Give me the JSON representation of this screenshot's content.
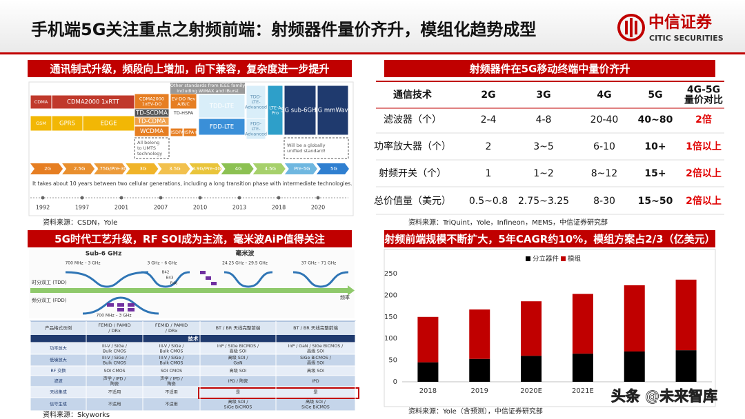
{
  "header": {
    "title": "手机端5G关注重点之射频前端：射频器件量价齐升，模组化趋势成型",
    "logo_cn": "中信证券",
    "logo_en": "CITIC SECURITIES"
  },
  "timeline_panel": {
    "title": "通讯制式升级，频段向上增加，向下兼容，复杂度进一步提升",
    "boxes": [
      [
        "CDMA"
      ],
      [
        "CDMA2000 1xRTT"
      ],
      [
        "CDMA2000",
        "1xEV-DO"
      ],
      [
        "EV-DO Rev",
        "A/B/C"
      ],
      [
        "TDD-LTE"
      ],
      [
        "TDD-",
        "LTE-",
        "Advanced"
      ],
      [
        "LTE-A",
        "Pro"
      ],
      [
        "5G sub-6GHz"
      ],
      [
        "5G mmWave"
      ],
      [
        "GSM"
      ],
      [
        "GPRS"
      ],
      [
        "EDGE"
      ],
      [
        "TD-SCDMA"
      ],
      [
        "TD-HSPA"
      ],
      [
        "TD-CDMA"
      ],
      [
        "WCDMA"
      ],
      [
        "HSDPA"
      ],
      [
        "HSPA+"
      ],
      [
        "FDD-LTE"
      ],
      [
        "FDD-",
        "LTE-",
        "Advanced"
      ]
    ],
    "notes": [
      [
        "Other standards from IEEE family",
        "including WiMAX and iBurst"
      ],
      [
        "All belong",
        "to UMTS",
        "technology"
      ],
      [
        "Will be a globally",
        "unified standard!"
      ]
    ],
    "generations": [
      "2G",
      "2.5G",
      "2.75G/Pre-3G",
      "3G",
      "3.5G",
      "3.9G/Pre-4G",
      "4G",
      "4.5G",
      "Pre-5G",
      "5G"
    ],
    "note": "It takes about 10 years between two cellular generations, including a long transition phase with intermediate technologies.",
    "years": [
      "1992",
      "1997",
      "2001",
      "2007",
      "2010",
      "2013",
      "2018",
      "2020"
    ],
    "source": "资料来源：CSDN，Yole"
  },
  "rf_panel": {
    "title": "5G时代工艺升级，RF SOI成为主流，毫米波AiP值得关注",
    "labels": [
      "Sub-6 GHz",
      "毫米波",
      "700 MHz – 3 GHz",
      "3 GHz – 6 GHz",
      "24.25 GHz – 29.5 GHz",
      "37 GHz – 71 GHz",
      "B42",
      "B43",
      "B46",
      "时分双工 (TDD)",
      "频分双工 (FDD)",
      "频率",
      "700 MHz – 3 GHz"
    ],
    "table": {
      "header": [
        [
          "产品格式示例"
        ],
        [
          "FEMID / PAMID",
          "/ DRx"
        ],
        [
          "FEMID / PAMID",
          "/ DRx"
        ],
        [
          "BT / BR 天线完整前端"
        ],
        [
          "BT / BR 天线完整前端"
        ]
      ],
      "section": "技术",
      "rows": [
        [
          [
            "功率放大"
          ],
          [
            "III-V / SiGe /",
            "Bulk CMOS"
          ],
          [
            "III-V / SiGe /",
            "Bulk CMOS"
          ],
          [
            "InP / SiGe BiCMOS /",
            "高级 SOI"
          ],
          [
            "InP / GaN / SiGe BiCMOS /",
            "高级 SOI"
          ]
        ],
        [
          [
            "低噪放大"
          ],
          [
            "III-V / SiGe /",
            "Bulk CMOS"
          ],
          [
            "III-V / SiGe /",
            "Bulk CMOS"
          ],
          [
            "高级 SOI /",
            "GaN"
          ],
          [
            "SiGe BiCMOS /",
            "高级 SOI"
          ]
        ],
        [
          [
            "RF 交换"
          ],
          [
            "SOI CMOS"
          ],
          [
            "SOI CMOS"
          ],
          [
            "高级 SOI"
          ],
          [
            "高级 SOI"
          ]
        ],
        [
          [
            "滤波"
          ],
          [
            "声学 / IPD /",
            "陶瓷"
          ],
          [
            "声学 / IPD /",
            "陶瓷"
          ],
          [
            "IPD / 陶瓷"
          ],
          [
            "IPD"
          ]
        ],
        [
          [
            "天线集成"
          ],
          [
            "不适用"
          ],
          [
            "不适用"
          ],
          [
            "是"
          ],
          [
            "是"
          ]
        ],
        [
          [
            "信号生成"
          ],
          [
            "不适用"
          ],
          [
            "不适用"
          ],
          [
            "高级 SOI /",
            "SiGe BiCMOS"
          ],
          [
            "高级 SOI /",
            "SiGe BiCMOS"
          ]
        ]
      ]
    },
    "source": "资料来源：Skyworks"
  },
  "rf_table": {
    "title": "射频器件在5G移动终端中量价齐升",
    "header": [
      [
        "通信技术"
      ],
      [
        "2G"
      ],
      [
        "3G"
      ],
      [
        "4G"
      ],
      [
        "5G"
      ],
      [
        "4G-5G",
        "量价对比"
      ]
    ],
    "rows": [
      [
        "滤波器（个）",
        "2-4",
        "4-8",
        "20-40",
        "40~80",
        "2倍"
      ],
      [
        "功率放大器（个）",
        "2",
        "3~5",
        "6-10",
        "10+",
        "1倍以上"
      ],
      [
        "射频开关（个）",
        "1",
        "1~2",
        "8~12",
        "15+",
        "2倍以上"
      ],
      [
        "总价值量（美元）",
        "0.5~0.8",
        "2.75~3.25",
        "8-30",
        "15~50",
        "2倍以上"
      ]
    ],
    "source": "资料来源：TriQuint，Yole，Infineon，MEMS，中信证券研究部"
  },
  "chart_data": {
    "type": "stacked_bar",
    "title": "射频前端规模不断扩大，5年CAGR约10%，模组方案占2/3（亿美元）",
    "categories": [
      "2018",
      "2019",
      "2020E",
      "2021E",
      null,
      null
    ],
    "series": [
      {
        "name": "分立器件",
        "color": "#000000",
        "values": [
          45,
          53,
          60,
          65,
          70,
          73
        ]
      },
      {
        "name": "模组",
        "color": "#c00000",
        "values": [
          105,
          114,
          126,
          138,
          153,
          163
        ]
      }
    ],
    "ylim": [
      0,
      250
    ],
    "yticks": [
      0,
      50,
      100,
      150,
      200,
      250
    ],
    "grid": false,
    "source": "资料来源：Yole（含预测），中信证券研究部"
  },
  "watermark": "头条 @未来智库"
}
